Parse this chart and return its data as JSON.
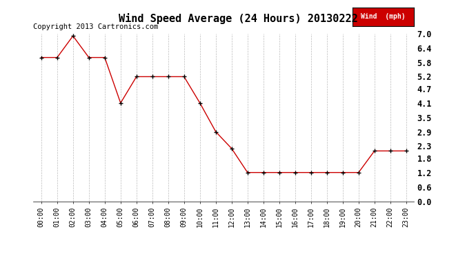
{
  "title": "Wind Speed Average (24 Hours) 20130222",
  "copyright": "Copyright 2013 Cartronics.com",
  "legend_label": "Wind  (mph)",
  "x_labels": [
    "00:00",
    "01:00",
    "02:00",
    "03:00",
    "04:00",
    "05:00",
    "06:00",
    "07:00",
    "08:00",
    "09:00",
    "10:00",
    "11:00",
    "12:00",
    "13:00",
    "14:00",
    "15:00",
    "16:00",
    "17:00",
    "18:00",
    "19:00",
    "20:00",
    "21:00",
    "22:00",
    "23:00"
  ],
  "wind_values": [
    6.0,
    6.0,
    6.9,
    6.0,
    6.0,
    4.1,
    5.2,
    5.2,
    5.2,
    5.2,
    4.1,
    2.9,
    2.2,
    1.2,
    1.2,
    1.2,
    1.2,
    1.2,
    1.2,
    1.2,
    1.2,
    2.1,
    2.1,
    2.1
  ],
  "ylim": [
    0.0,
    7.0
  ],
  "yticks": [
    0.0,
    0.6,
    1.2,
    1.8,
    2.3,
    2.9,
    3.5,
    4.1,
    4.7,
    5.2,
    5.8,
    6.4,
    7.0
  ],
  "line_color": "#cc0000",
  "marker_color": "#000000",
  "bg_color": "#ffffff",
  "grid_color": "#bbbbbb",
  "title_fontsize": 11,
  "copyright_fontsize": 7.5,
  "legend_bg": "#cc0000",
  "legend_text_color": "#ffffff",
  "ytick_fontsize": 8.5,
  "xtick_fontsize": 7
}
